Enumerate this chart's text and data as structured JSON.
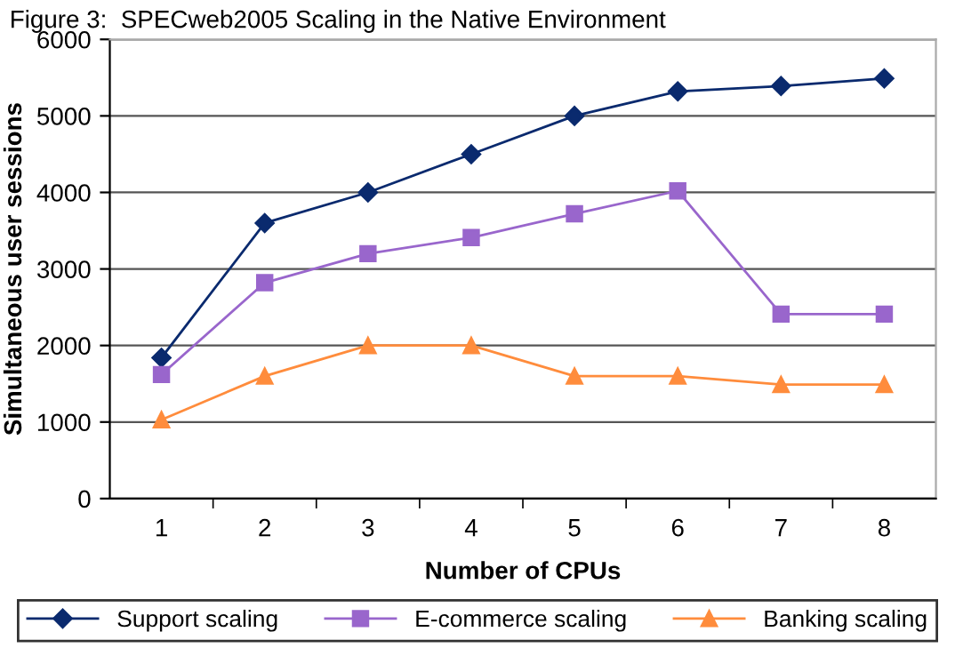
{
  "chart_data": {
    "type": "line",
    "title": "Figure 3:  SPECweb2005 Scaling in the Native Environment",
    "xlabel": "Number of CPUs",
    "ylabel": "Simultaneous user sessions",
    "categories": [
      "1",
      "2",
      "3",
      "4",
      "5",
      "6",
      "7",
      "8"
    ],
    "series": [
      {
        "name": "Support scaling",
        "color": "#0a2a6e",
        "marker": "diamond",
        "values": [
          1840,
          3600,
          4000,
          4500,
          5000,
          5320,
          5390,
          5490
        ]
      },
      {
        "name": "E-commerce scaling",
        "color": "#9966cc",
        "marker": "square",
        "values": [
          1620,
          2820,
          3200,
          3410,
          3720,
          4020,
          2410,
          2410
        ]
      },
      {
        "name": "Banking scaling",
        "color": "#ff8c3c",
        "marker": "triangle",
        "values": [
          1030,
          1600,
          2000,
          2000,
          1600,
          1600,
          1490,
          1490
        ]
      }
    ],
    "ylim": [
      0,
      6000
    ],
    "yticks": [
      0,
      1000,
      2000,
      3000,
      4000,
      5000,
      6000
    ],
    "grid": "y",
    "legend": "bottom"
  }
}
